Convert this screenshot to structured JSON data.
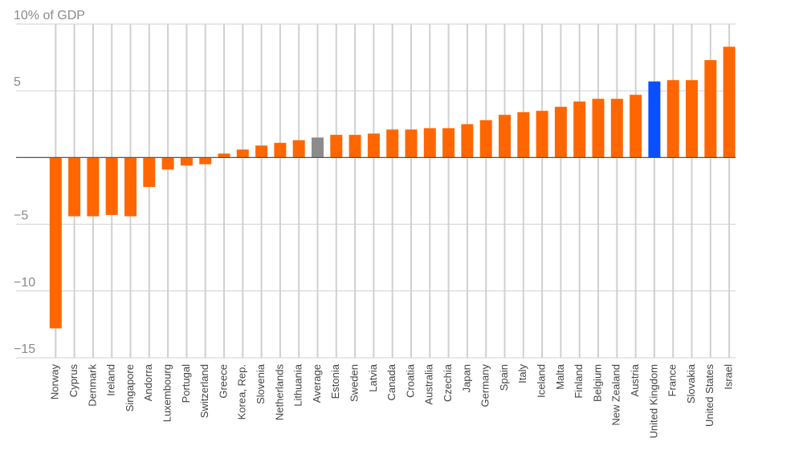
{
  "chart_data": {
    "type": "bar",
    "title": "",
    "ylabel": "10% of GDP",
    "xlabel": "",
    "ylim": [
      -15,
      10
    ],
    "yticks": [
      -15,
      -10,
      -5,
      0,
      5,
      10
    ],
    "ytick_labels": [
      "−15",
      "−10",
      "−5",
      "",
      "5",
      "10% of GDP"
    ],
    "grid": true,
    "categories": [
      "Norway",
      "Cyprus",
      "Denmark",
      "Ireland",
      "Singapore",
      "Andorra",
      "Luxembourg",
      "Portugal",
      "Switzerland",
      "Greece",
      "Korea, Rep.",
      "Slovenia",
      "Netherlands",
      "Lithuania",
      "Average",
      "Estonia",
      "Sweden",
      "Latvia",
      "Canada",
      "Croatia",
      "Australia",
      "Czechia",
      "Japan",
      "Germany",
      "Spain",
      "Italy",
      "Iceland",
      "Malta",
      "Finland",
      "Belgium",
      "New Zealand",
      "Austria",
      "United Kingdom",
      "France",
      "Slovakia",
      "United States",
      "Israel"
    ],
    "values": [
      -12.8,
      -4.4,
      -4.4,
      -4.3,
      -4.4,
      -2.2,
      -0.9,
      -0.6,
      -0.5,
      0.3,
      0.6,
      0.9,
      1.1,
      1.3,
      1.5,
      1.7,
      1.7,
      1.8,
      2.1,
      2.1,
      2.2,
      2.2,
      2.5,
      2.8,
      3.2,
      3.4,
      3.5,
      3.8,
      4.2,
      4.4,
      4.4,
      4.7,
      5.7,
      5.8,
      5.8,
      7.3,
      8.3
    ],
    "colors": {
      "default": "#ff6600",
      "average": "#8c8c8c",
      "highlight": "#0a4fff",
      "grid": "#d0d0d0",
      "axis": "#555555"
    },
    "average_category": "Average",
    "highlight_category": "United Kingdom"
  }
}
